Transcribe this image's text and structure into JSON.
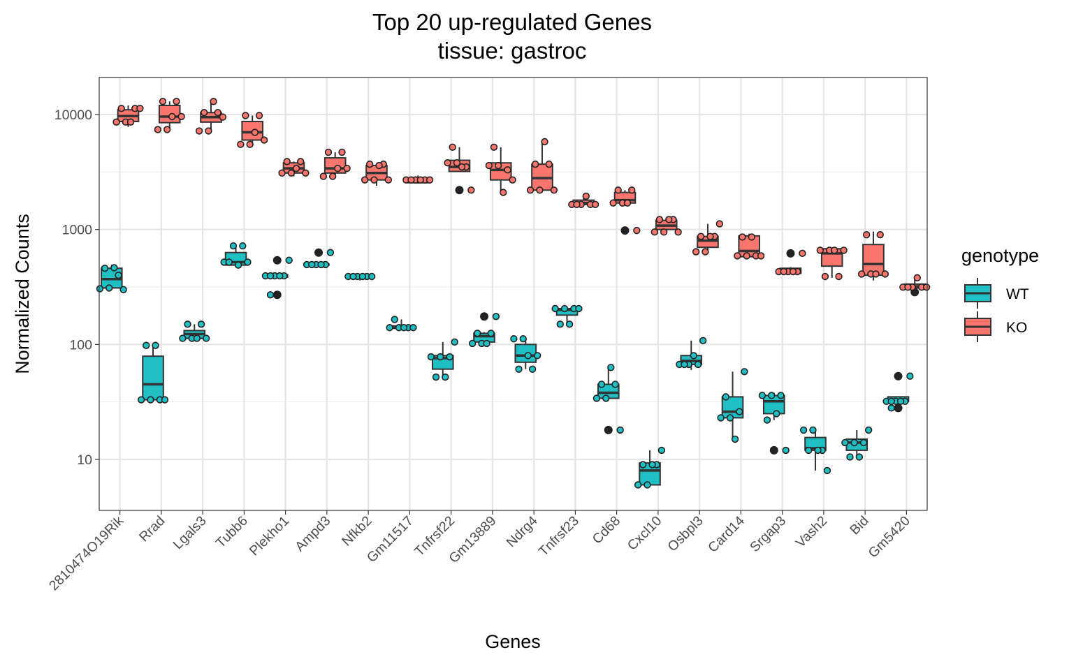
{
  "chart_data": {
    "type": "box",
    "title": "Top 20 up-regulated Genes",
    "subtitle": "tissue: gastroc",
    "xlabel": "Genes",
    "ylabel": "Normalized Counts",
    "y_scale": "log10",
    "ylim": [
      3.6,
      21000
    ],
    "y_ticks": [
      10,
      100,
      1000,
      10000
    ],
    "y_tick_labels": [
      "10",
      "100",
      "1000",
      "10000"
    ],
    "grid": true,
    "legend": {
      "title": "genotype",
      "position": "right",
      "entries": [
        {
          "label": "WT",
          "color": "#1fbfc3"
        },
        {
          "label": "KO",
          "color": "#f8766d"
        }
      ]
    },
    "categories": [
      "2810474O19Rik",
      "Rrad",
      "Lgals3",
      "Tubb6",
      "Plekho1",
      "Ampd3",
      "Nfkb2",
      "Gm11517",
      "Tnfrsf22",
      "Gm13889",
      "Ndrg4",
      "Tnfrsf23",
      "Cd68",
      "Cxcl10",
      "Osbpl3",
      "Card14",
      "Srgap3",
      "Vash2",
      "Bid",
      "Gm5420"
    ],
    "series": [
      {
        "name": "WT",
        "color": "#1fbfc3",
        "boxes": [
          {
            "q1": 310,
            "median": 370,
            "q3": 460,
            "whisker_low": 305,
            "whisker_high": 495,
            "outliers": [],
            "points": [
              305,
              310,
              400,
              460,
              465,
              300
            ]
          },
          {
            "q1": 33,
            "median": 45,
            "q3": 79,
            "whisker_low": 33,
            "whisker_high": 98,
            "outliers": [],
            "points": [
              33,
              33,
              33,
              98,
              98,
              33
            ]
          },
          {
            "q1": 113,
            "median": 123,
            "q3": 132,
            "whisker_low": 113,
            "whisker_high": 150,
            "outliers": [],
            "points": [
              113,
              113,
              150,
              150,
              113,
              113
            ]
          },
          {
            "q1": 490,
            "median": 520,
            "q3": 630,
            "whisker_low": 490,
            "whisker_high": 720,
            "outliers": [],
            "points": [
              520,
              720,
              720,
              520,
              490,
              520
            ]
          },
          {
            "q1": 385,
            "median": 395,
            "q3": 405,
            "whisker_low": 385,
            "whisker_high": 410,
            "outliers": [
              540,
              270
            ],
            "points": [
              395,
              395,
              395,
              395,
              395,
              540,
              270
            ]
          },
          {
            "q1": 490,
            "median": 495,
            "q3": 500,
            "whisker_low": 490,
            "whisker_high": 500,
            "outliers": [
              630
            ],
            "points": [
              495,
              495,
              495,
              495,
              495,
              630
            ]
          },
          {
            "q1": 385,
            "median": 390,
            "q3": 395,
            "whisker_low": 360,
            "whisker_high": 410,
            "outliers": [],
            "points": [
              390,
              390,
              390,
              390,
              390,
              390
            ]
          },
          {
            "q1": 138,
            "median": 140,
            "q3": 145,
            "whisker_low": 135,
            "whisker_high": 165,
            "outliers": [],
            "points": [
              140,
              140,
              140,
              165,
              140,
              140
            ]
          },
          {
            "q1": 61,
            "median": 76,
            "q3": 80,
            "whisker_low": 52,
            "whisker_high": 105,
            "outliers": [],
            "points": [
              78,
              78,
              78,
              52,
              52,
              105
            ]
          },
          {
            "q1": 105,
            "median": 118,
            "q3": 125,
            "whisker_low": 100,
            "whisker_high": 128,
            "outliers": [
              175
            ],
            "points": [
              102,
              102,
              125,
              125,
              102,
              175
            ]
          },
          {
            "q1": 70,
            "median": 80,
            "q3": 100,
            "whisker_low": 61,
            "whisker_high": 112,
            "outliers": [],
            "points": [
              112,
              112,
              61,
              61,
              80,
              80
            ]
          },
          {
            "q1": 180,
            "median": 200,
            "q3": 205,
            "whisker_low": 150,
            "whisker_high": 210,
            "outliers": [],
            "points": [
              205,
              205,
              205,
              150,
              150,
              205
            ]
          },
          {
            "q1": 34,
            "median": 38,
            "q3": 45,
            "whisker_low": 34,
            "whisker_high": 63,
            "outliers": [
              18
            ],
            "points": [
              34,
              34,
              45,
              45,
              63,
              18
            ]
          },
          {
            "q1": 6,
            "median": 8,
            "q3": 9.3,
            "whisker_low": 6,
            "whisker_high": 12,
            "outliers": [],
            "points": [
              6,
              6,
              9,
              9,
              9,
              12
            ]
          },
          {
            "q1": 67,
            "median": 72,
            "q3": 80,
            "whisker_low": 60,
            "whisker_high": 108,
            "outliers": [],
            "points": [
              67,
              67,
              67,
              67,
              80,
              108
            ]
          },
          {
            "q1": 23,
            "median": 26,
            "q3": 35,
            "whisker_low": 15,
            "whisker_high": 58,
            "outliers": [],
            "points": [
              23,
              23,
              26,
              35,
              15,
              58
            ]
          },
          {
            "q1": 25,
            "median": 32,
            "q3": 36,
            "whisker_low": 22,
            "whisker_high": 38,
            "outliers": [
              12
            ],
            "points": [
              36,
              36,
              36,
              22,
              25,
              12
            ]
          },
          {
            "q1": 12,
            "median": 12.5,
            "q3": 15.5,
            "whisker_low": 8,
            "whisker_high": 18,
            "outliers": [],
            "points": [
              18,
              18,
              12,
              12,
              12,
              8
            ]
          },
          {
            "q1": 12,
            "median": 14,
            "q3": 15,
            "whisker_low": 10.5,
            "whisker_high": 18,
            "outliers": [],
            "points": [
              14,
              14,
              14,
              10.5,
              10.5,
              18
            ]
          },
          {
            "q1": 32,
            "median": 32,
            "q3": 35,
            "whisker_low": 32,
            "whisker_high": 35,
            "outliers": [
              53,
              28
            ],
            "points": [
              32,
              32,
              32,
              32,
              32,
              53,
              28
            ]
          }
        ]
      },
      {
        "name": "KO",
        "color": "#f8766d",
        "boxes": [
          {
            "q1": 8700,
            "median": 9700,
            "q3": 11000,
            "whisker_low": 7800,
            "whisker_high": 12000,
            "outliers": [],
            "points": [
              8600,
              8600,
              11300,
              11300,
              8600,
              11300
            ]
          },
          {
            "q1": 8500,
            "median": 9600,
            "q3": 12000,
            "whisker_low": 7400,
            "whisker_high": 13000,
            "outliers": [],
            "points": [
              7400,
              7400,
              13000,
              13000,
              9600,
              9600
            ]
          },
          {
            "q1": 8600,
            "median": 9500,
            "q3": 10400,
            "whisker_low": 6900,
            "whisker_high": 13000,
            "outliers": [],
            "points": [
              7200,
              7200,
              10400,
              10400,
              13000,
              9500
            ]
          },
          {
            "q1": 6000,
            "median": 7000,
            "q3": 8700,
            "whisker_low": 5400,
            "whisker_high": 9800,
            "outliers": [],
            "points": [
              5500,
              5500,
              9800,
              9800,
              7000,
              6000
            ]
          },
          {
            "q1": 3100,
            "median": 3400,
            "q3": 3800,
            "whisker_low": 2900,
            "whisker_high": 3900,
            "outliers": [],
            "points": [
              3100,
              3100,
              3900,
              3900,
              3400,
              3100
            ]
          },
          {
            "q1": 3100,
            "median": 3400,
            "q3": 4200,
            "whisker_low": 2900,
            "whisker_high": 4700,
            "outliers": [],
            "points": [
              2900,
              2900,
              4700,
              4700,
              3400,
              3400
            ]
          },
          {
            "q1": 2700,
            "median": 3100,
            "q3": 3600,
            "whisker_low": 2400,
            "whisker_high": 3700,
            "outliers": [],
            "points": [
              2700,
              2700,
              3700,
              3700,
              3600,
              2700
            ]
          },
          {
            "q1": 2550,
            "median": 2650,
            "q3": 2750,
            "whisker_low": 2500,
            "whisker_high": 2950,
            "outliers": [],
            "points": [
              2700,
              2700,
              2700,
              2700,
              2700,
              2700
            ]
          },
          {
            "q1": 3200,
            "median": 3500,
            "q3": 4000,
            "whisker_low": 3200,
            "whisker_high": 5200,
            "outliers": [
              2200
            ],
            "points": [
              3800,
              3800,
              3500,
              5200,
              3500,
              2200
            ]
          },
          {
            "q1": 2700,
            "median": 3300,
            "q3": 3800,
            "whisker_low": 2100,
            "whisker_high": 5200,
            "outliers": [],
            "points": [
              3600,
              3600,
              3300,
              5200,
              2100,
              2700
            ]
          },
          {
            "q1": 2200,
            "median": 2800,
            "q3": 3700,
            "whisker_low": 2100,
            "whisker_high": 5800,
            "outliers": [],
            "points": [
              2200,
              2200,
              3700,
              3700,
              5800,
              2200
            ]
          },
          {
            "q1": 1650,
            "median": 1700,
            "q3": 1800,
            "whisker_low": 1600,
            "whisker_high": 1950,
            "outliers": [],
            "points": [
              1650,
              1650,
              1650,
              1650,
              1950,
              1650
            ]
          },
          {
            "q1": 1700,
            "median": 1800,
            "q3": 2100,
            "whisker_low": 1650,
            "whisker_high": 2200,
            "outliers": [
              980
            ],
            "points": [
              1700,
              1700,
              2200,
              2200,
              1700,
              980
            ]
          },
          {
            "q1": 1000,
            "median": 1080,
            "q3": 1200,
            "whisker_low": 920,
            "whisker_high": 1250,
            "outliers": [],
            "points": [
              950,
              950,
              1220,
              1220,
              1220,
              950
            ]
          },
          {
            "q1": 700,
            "median": 800,
            "q3": 870,
            "whisker_low": 640,
            "whisker_high": 1120,
            "outliers": [],
            "points": [
              640,
              640,
              870,
              870,
              870,
              1120
            ]
          },
          {
            "q1": 580,
            "median": 650,
            "q3": 880,
            "whisker_low": 570,
            "whisker_high": 920,
            "outliers": [],
            "points": [
              590,
              590,
              590,
              860,
              860,
              590
            ]
          },
          {
            "q1": 415,
            "median": 430,
            "q3": 460,
            "whisker_low": 410,
            "whisker_high": 470,
            "outliers": [
              620
            ],
            "points": [
              430,
              430,
              430,
              430,
              430,
              620
            ]
          },
          {
            "q1": 480,
            "median": 620,
            "q3": 680,
            "whisker_low": 380,
            "whisker_high": 690,
            "outliers": [],
            "points": [
              660,
              660,
              390,
              390,
              660,
              660
            ]
          },
          {
            "q1": 400,
            "median": 500,
            "q3": 740,
            "whisker_low": 360,
            "whisker_high": 960,
            "outliers": [],
            "points": [
              410,
              410,
              900,
              900,
              410,
              410
            ]
          },
          {
            "q1": 310,
            "median": 320,
            "q3": 335,
            "whisker_low": 285,
            "whisker_high": 380,
            "outliers": [
              285
            ],
            "points": [
              315,
              315,
              315,
              315,
              380,
              315
            ]
          }
        ]
      }
    ]
  }
}
